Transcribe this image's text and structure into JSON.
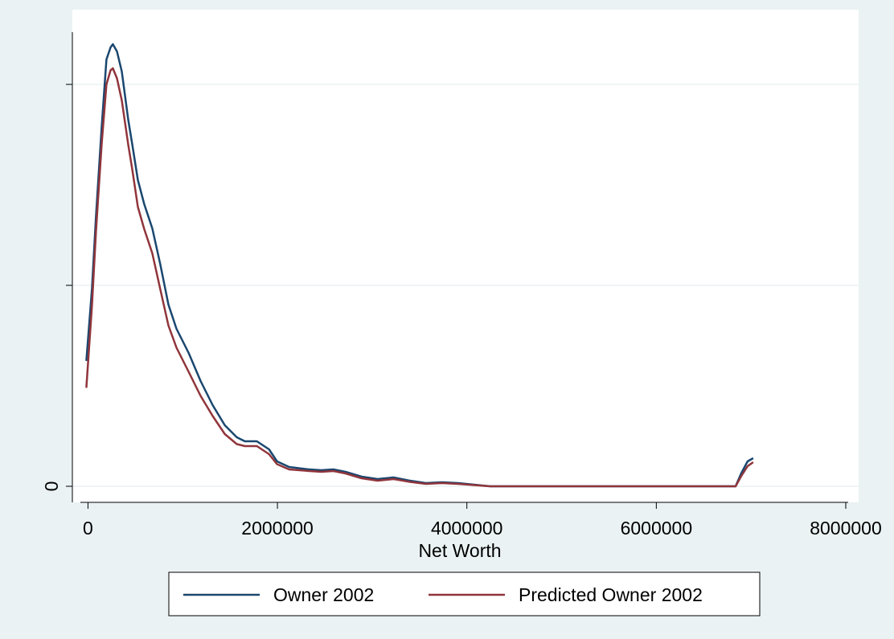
{
  "chart_data": {
    "type": "line",
    "x_label": "Net Worth",
    "x": [
      -17000,
      42000,
      85000,
      144000,
      195000,
      238000,
      263000,
      306000,
      357000,
      425000,
      467000,
      527000,
      594000,
      679000,
      764000,
      849000,
      934000,
      1062000,
      1189000,
      1316000,
      1444000,
      1571000,
      1656000,
      1783000,
      1911000,
      1996000,
      2123000,
      2335000,
      2463000,
      2590000,
      2718000,
      2888000,
      3057000,
      3227000,
      3397000,
      3567000,
      3737000,
      3907000,
      4076000,
      4246000,
      5011000,
      6030000,
      6709000,
      6837000,
      6896000,
      6964000,
      7023000
    ],
    "series": [
      {
        "name": "Owner 2002",
        "color": "#1a476f",
        "values": [
          0.624,
          0.984,
          1.344,
          1.784,
          2.124,
          2.184,
          2.2,
          2.164,
          2.064,
          1.824,
          1.704,
          1.524,
          1.404,
          1.284,
          1.104,
          0.904,
          0.784,
          0.664,
          0.524,
          0.404,
          0.304,
          0.244,
          0.224,
          0.224,
          0.184,
          0.124,
          0.096,
          0.084,
          0.08,
          0.084,
          0.072,
          0.048,
          0.036,
          0.044,
          0.028,
          0.016,
          0.02,
          0.016,
          0.008,
          0,
          0,
          0,
          0,
          0,
          0.064,
          0.124,
          0.14
        ]
      },
      {
        "name": "Predicted Owner 2002",
        "color": "#90353b",
        "values": [
          0.49,
          0.9,
          1.27,
          1.7,
          2.0,
          2.07,
          2.08,
          2.03,
          1.92,
          1.7,
          1.58,
          1.39,
          1.28,
          1.16,
          0.98,
          0.8,
          0.69,
          0.57,
          0.45,
          0.35,
          0.26,
          0.21,
          0.2,
          0.2,
          0.16,
          0.11,
          0.084,
          0.076,
          0.072,
          0.076,
          0.064,
          0.04,
          0.028,
          0.036,
          0.022,
          0.012,
          0.016,
          0.012,
          0.006,
          0,
          0,
          0,
          0,
          0,
          0.05,
          0.1,
          0.12
        ]
      }
    ],
    "xlim": [
      -80000,
      8000000
    ],
    "xticks": [
      0,
      2000000,
      4000000,
      6000000,
      8000000
    ],
    "ylim": [
      -0.08,
      2.26
    ],
    "yticks": [
      0
    ],
    "yminor_ticks": [
      1,
      2
    ],
    "grid": true,
    "legend": "bottom"
  }
}
